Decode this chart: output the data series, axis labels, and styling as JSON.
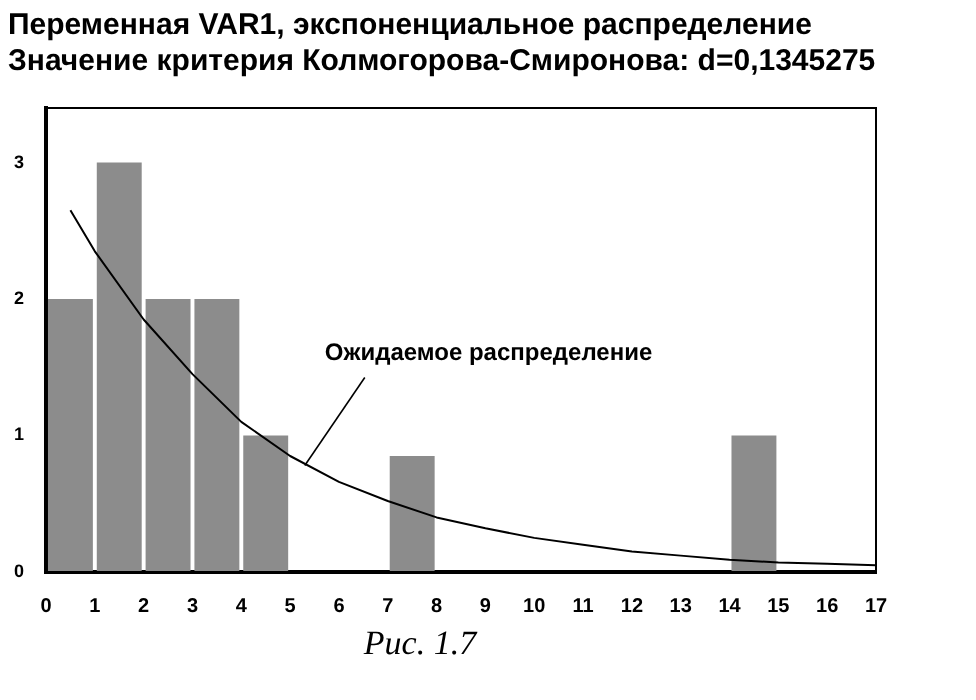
{
  "chart_data": {
    "type": "histogram",
    "title": [
      "Переменная VAR1, экспоненциальное распределение",
      "Значение критерия Колмогорова-Смиронова: d=0,1345275"
    ],
    "bins": [
      0,
      1,
      2,
      3,
      4,
      5,
      6,
      7,
      8,
      9,
      10,
      11,
      12,
      13,
      14,
      15,
      16,
      17
    ],
    "values": [
      2,
      3,
      2,
      2,
      1,
      0,
      0,
      0.85,
      0,
      0,
      0,
      0,
      0,
      0,
      1,
      0,
      0
    ],
    "color": "#8c8c8c",
    "series": [
      {
        "type": "line",
        "color": "#000000",
        "x": [
          0.5,
          1,
          2,
          3,
          4,
          5,
          6,
          7,
          8,
          9,
          10,
          11,
          12,
          13,
          14,
          15,
          16,
          17
        ],
        "values": [
          2.65,
          2.35,
          1.85,
          1.45,
          1.1,
          0.85,
          0.66,
          0.52,
          0.4,
          0.32,
          0.25,
          0.2,
          0.15,
          0.12,
          0.09,
          0.07,
          0.06,
          0.05
        ]
      }
    ],
    "xlim": [
      0,
      17
    ],
    "xticks": [
      0,
      1,
      2,
      3,
      4,
      5,
      6,
      7,
      8,
      9,
      10,
      11,
      12,
      13,
      14,
      15,
      16,
      17
    ],
    "ylim": [
      0,
      3.4
    ],
    "yticks": [
      0,
      1,
      2,
      3
    ],
    "grid": false,
    "legend": false,
    "marker": "none",
    "annotations": [
      {
        "text": "Ожидаемое распределение",
        "x": 5.3,
        "y": 0.78
      },
      "Рис. 1.7"
    ]
  }
}
